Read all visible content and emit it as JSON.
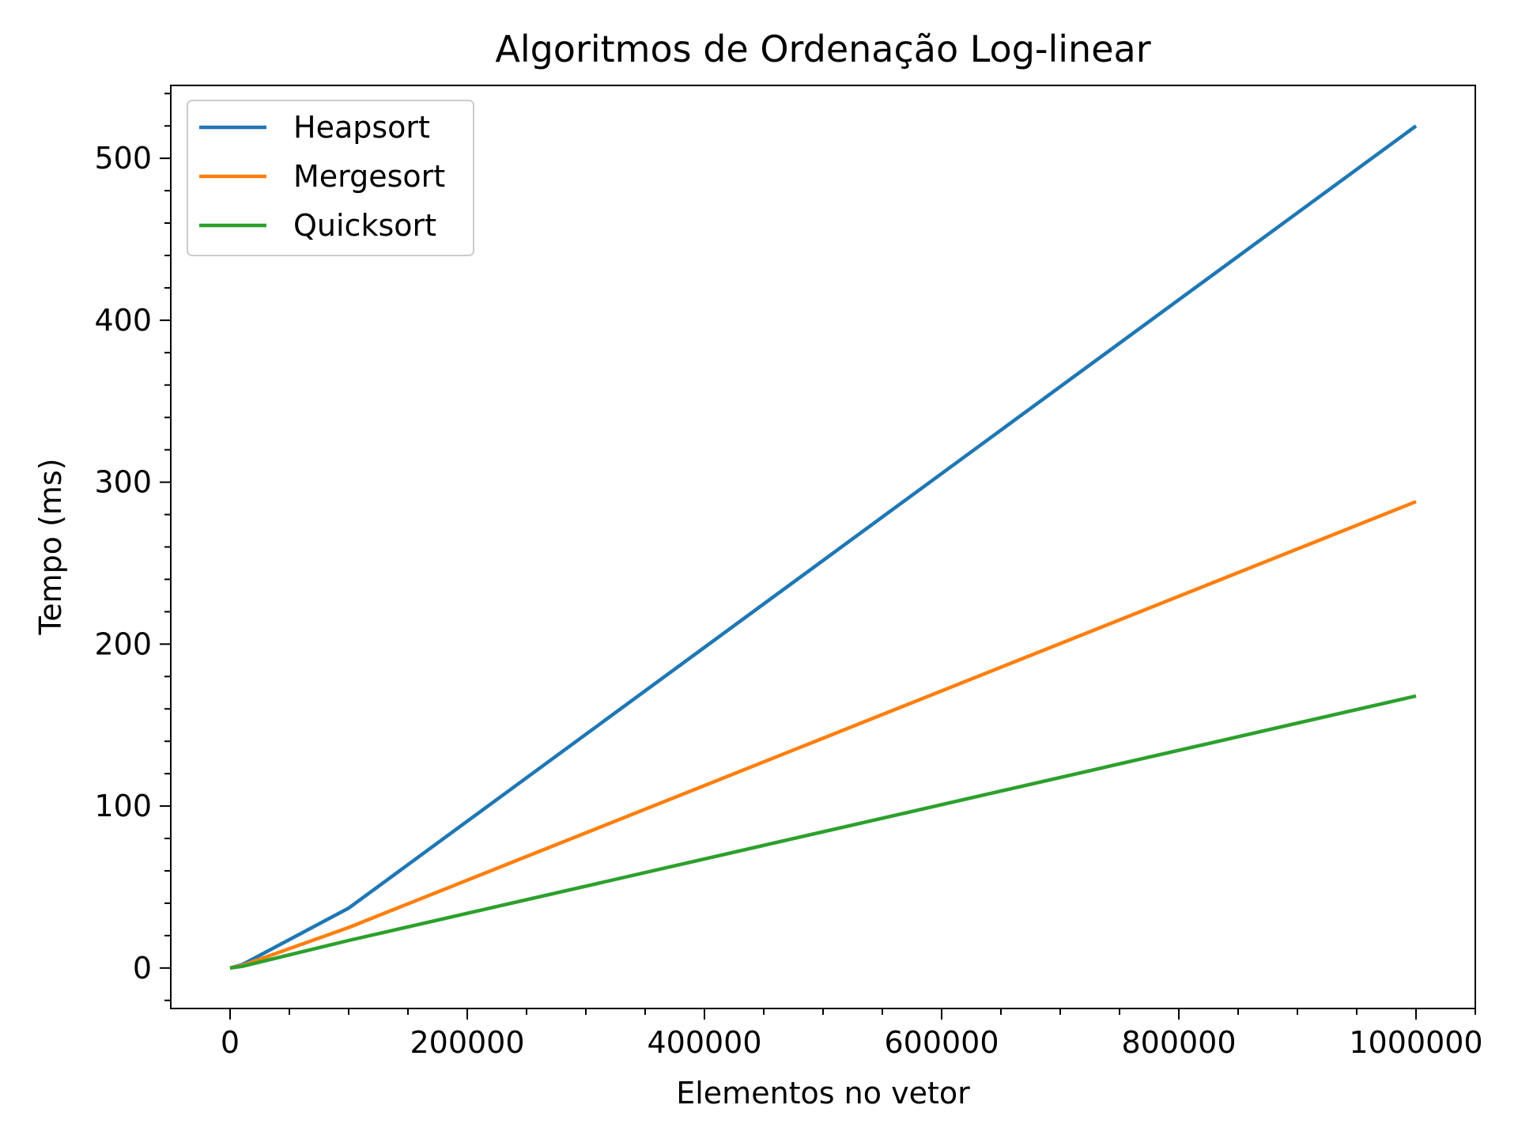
{
  "chart_data": {
    "type": "line",
    "title": "Algoritmos de Ordenação Log-linear",
    "xlabel": "Elementos no vetor",
    "ylabel": "Tempo (ms)",
    "xlim": [
      -50000,
      1050000
    ],
    "ylim": [
      -25,
      545
    ],
    "x_ticks": [
      0,
      200000,
      400000,
      600000,
      800000,
      1000000
    ],
    "x_tick_labels": [
      "0",
      "200000",
      "400000",
      "600000",
      "800000",
      "1000000"
    ],
    "y_ticks": [
      0,
      100,
      200,
      300,
      400,
      500
    ],
    "y_tick_labels": [
      "0",
      "100",
      "200",
      "300",
      "400",
      "500"
    ],
    "x_minor_step": 50000,
    "y_minor_step": 20,
    "grid": false,
    "legend_position": "upper-left",
    "x": [
      0,
      10000,
      100000,
      1000000
    ],
    "series": [
      {
        "name": "Heapsort",
        "color": "#1f77b4",
        "values": [
          0,
          2,
          37,
          520
        ]
      },
      {
        "name": "Mergesort",
        "color": "#ff7f0e",
        "values": [
          0,
          1.5,
          25,
          288
        ]
      },
      {
        "name": "Quicksort",
        "color": "#2ca02c",
        "values": [
          0,
          1,
          17,
          168
        ]
      }
    ]
  }
}
